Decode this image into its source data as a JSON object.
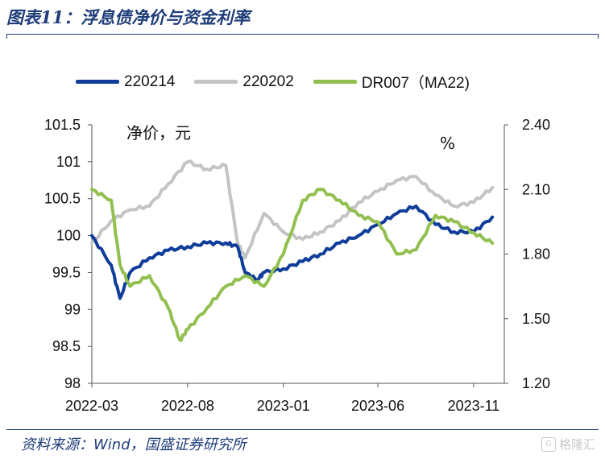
{
  "header": {
    "title": "图表11：浮息债净价与资金利率"
  },
  "footer": {
    "source": "资料来源：Wind，国盛证券研究所",
    "watermark": "格隆汇"
  },
  "colors": {
    "s220214": "#0f3d99",
    "s220202": "#c4c4c4",
    "dr007": "#92c050",
    "brand": "#1f3d7a"
  },
  "chart_data": {
    "type": "line",
    "left_unit": "净价，元",
    "right_unit": "%",
    "x_ticks": [
      "2022-03",
      "2022-08",
      "2023-01",
      "2023-06",
      "2023-11"
    ],
    "y_left": {
      "min": 98,
      "max": 101.5,
      "ticks": [
        "98",
        "98.5",
        "99",
        "99.5",
        "100",
        "100.5",
        "101",
        "101.5"
      ]
    },
    "y_right": {
      "min": 1.2,
      "max": 2.4,
      "ticks": [
        "1.20",
        "1.50",
        "1.80",
        "2.10",
        "2.40"
      ]
    },
    "legend": [
      "220214",
      "220202",
      "DR007（MA22)"
    ],
    "series": [
      {
        "name": "220214",
        "axis": "left",
        "color": "#0f3d99",
        "x": [
          "2022-03",
          "2022-04",
          "2022-04-15",
          "2022-05",
          "2022-06",
          "2022-07",
          "2022-08",
          "2022-09",
          "2022-10",
          "2022-10-20",
          "2022-11",
          "2022-11-20",
          "2022-12",
          "2023-01",
          "2023-02",
          "2023-03",
          "2023-04",
          "2023-05",
          "2023-06",
          "2023-07",
          "2023-08",
          "2023-09",
          "2023-10",
          "2023-11",
          "2023-12"
        ],
        "y": [
          100.0,
          99.6,
          99.15,
          99.5,
          99.7,
          99.8,
          99.85,
          99.9,
          99.9,
          99.85,
          99.5,
          99.4,
          99.5,
          99.55,
          99.65,
          99.75,
          99.9,
          100.0,
          100.15,
          100.3,
          100.4,
          100.15,
          100.05,
          100.05,
          100.25
        ]
      },
      {
        "name": "220202",
        "axis": "left",
        "color": "#c4c4c4",
        "x": [
          "2022-03",
          "2022-04",
          "2022-05",
          "2022-06",
          "2022-07",
          "2022-08",
          "2022-09",
          "2022-10",
          "2022-10-20",
          "2022-11",
          "2022-12",
          "2023-01",
          "2023-02",
          "2023-03",
          "2023-04",
          "2023-05",
          "2023-06",
          "2023-07",
          "2023-08",
          "2023-09",
          "2023-10",
          "2023-11",
          "2023-12"
        ],
        "y": [
          99.9,
          100.2,
          100.35,
          100.4,
          100.7,
          101.0,
          100.9,
          100.95,
          99.9,
          99.7,
          100.3,
          100.05,
          99.95,
          100.05,
          100.2,
          100.45,
          100.6,
          100.75,
          100.8,
          100.55,
          100.4,
          100.45,
          100.65
        ]
      },
      {
        "name": "DR007（MA22)",
        "axis": "right",
        "color": "#92c050",
        "x": [
          "2022-03",
          "2022-04",
          "2022-04-15",
          "2022-05",
          "2022-06",
          "2022-07",
          "2022-07-20",
          "2022-08",
          "2022-09",
          "2022-10",
          "2022-11",
          "2022-12",
          "2023-01",
          "2023-02",
          "2023-03",
          "2023-04",
          "2023-05",
          "2023-06",
          "2023-07",
          "2023-08",
          "2023-09",
          "2023-10",
          "2023-11",
          "2023-12"
        ],
        "y": [
          2.1,
          2.05,
          1.75,
          1.65,
          1.7,
          1.55,
          1.4,
          1.45,
          1.55,
          1.65,
          1.7,
          1.65,
          1.8,
          2.05,
          2.1,
          2.05,
          1.98,
          1.95,
          1.8,
          1.82,
          1.98,
          1.95,
          1.9,
          1.85
        ]
      }
    ]
  }
}
